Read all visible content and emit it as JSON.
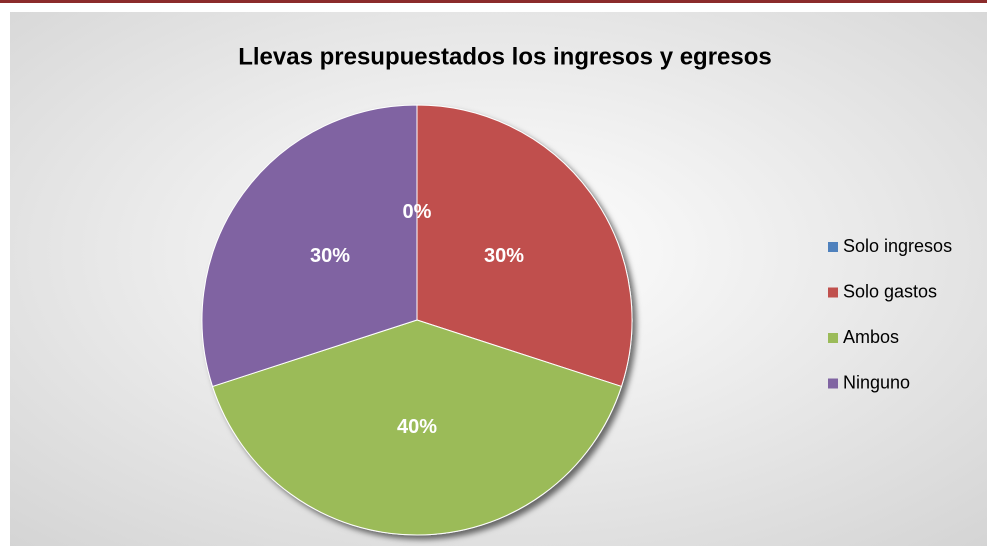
{
  "chart_data": {
    "type": "pie",
    "title": "Llevas presupuestados los ingresos y egresos",
    "categories": [
      "Solo ingresos",
      "Solo gastos",
      "Ambos",
      "Ninguno"
    ],
    "values": [
      0,
      30,
      40,
      30
    ],
    "value_labels": [
      "0%",
      "30%",
      "40%",
      "30%"
    ],
    "colors": [
      "#4f81bd",
      "#c0504d",
      "#9bbb59",
      "#8064a2"
    ],
    "legend": "right"
  }
}
